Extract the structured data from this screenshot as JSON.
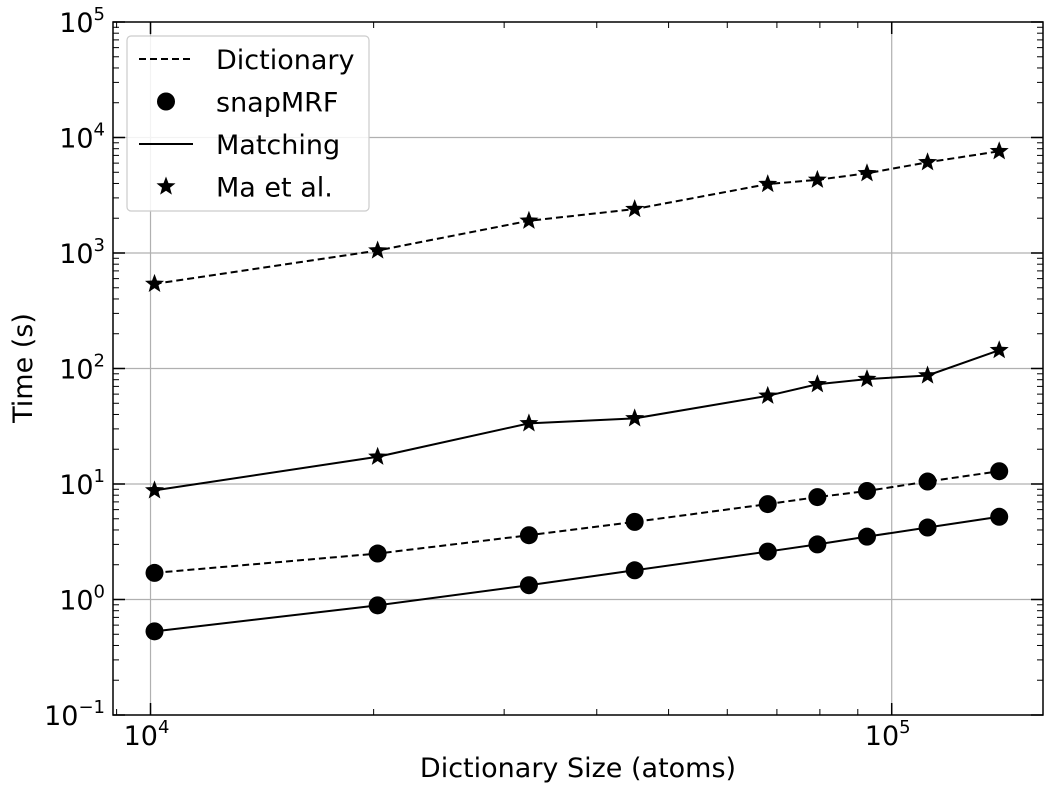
{
  "chart_data": {
    "type": "line",
    "xlabel": "Dictionary Size (atoms)",
    "ylabel": "Time (s)",
    "xscale": "log",
    "yscale": "log",
    "xlim": [
      8900,
      160000
    ],
    "ylim": [
      0.1,
      100000
    ],
    "grid": true,
    "legend_position": "top-left",
    "x_ticks": [
      {
        "value": 10000,
        "base": "10",
        "exp": "4"
      },
      {
        "value": 100000,
        "base": "10",
        "exp": "5"
      }
    ],
    "y_ticks": [
      {
        "value": 0.1,
        "base": "10",
        "exp": "−1"
      },
      {
        "value": 1,
        "base": "10",
        "exp": "0"
      },
      {
        "value": 10,
        "base": "10",
        "exp": "1"
      },
      {
        "value": 100,
        "base": "10",
        "exp": "2"
      },
      {
        "value": 1000,
        "base": "10",
        "exp": "3"
      },
      {
        "value": 10000,
        "base": "10",
        "exp": "4"
      },
      {
        "value": 100000,
        "base": "10",
        "exp": "5"
      }
    ],
    "x": [
      10125,
      20250,
      32400,
      45000,
      68040,
      79380,
      92610,
      111780,
      139650
    ],
    "series": [
      {
        "name": "Ma et al. — Dictionary",
        "method": "Ma et al.",
        "task": "Dictionary",
        "marker": "star",
        "line": "dashed",
        "values": [
          540,
          1050,
          1900,
          2400,
          3950,
          4300,
          4900,
          6100,
          7600
        ]
      },
      {
        "name": "Ma et al. — Matching",
        "method": "Ma et al.",
        "task": "Matching",
        "marker": "star",
        "line": "solid",
        "values": [
          8.8,
          17.2,
          33.5,
          37,
          58,
          73,
          81,
          87,
          144
        ]
      },
      {
        "name": "snapMRF — Dictionary",
        "method": "snapMRF",
        "task": "Dictionary",
        "marker": "circle",
        "line": "dashed",
        "values": [
          1.7,
          2.5,
          3.6,
          4.7,
          6.7,
          7.7,
          8.7,
          10.5,
          12.9
        ]
      },
      {
        "name": "snapMRF — Matching",
        "method": "snapMRF",
        "task": "Matching",
        "marker": "circle",
        "line": "solid",
        "values": [
          0.53,
          0.89,
          1.33,
          1.79,
          2.6,
          3.0,
          3.5,
          4.2,
          5.2
        ]
      }
    ],
    "legend": [
      {
        "label": "Dictionary",
        "symbol": "dashed-line"
      },
      {
        "label": "snapMRF",
        "symbol": "circle"
      },
      {
        "label": "Matching",
        "symbol": "solid-line"
      },
      {
        "label": "Ma et al.",
        "symbol": "star"
      }
    ],
    "colors": {
      "marks": "#000000",
      "grid": "#b0b0b0",
      "background": "#ffffff"
    }
  }
}
